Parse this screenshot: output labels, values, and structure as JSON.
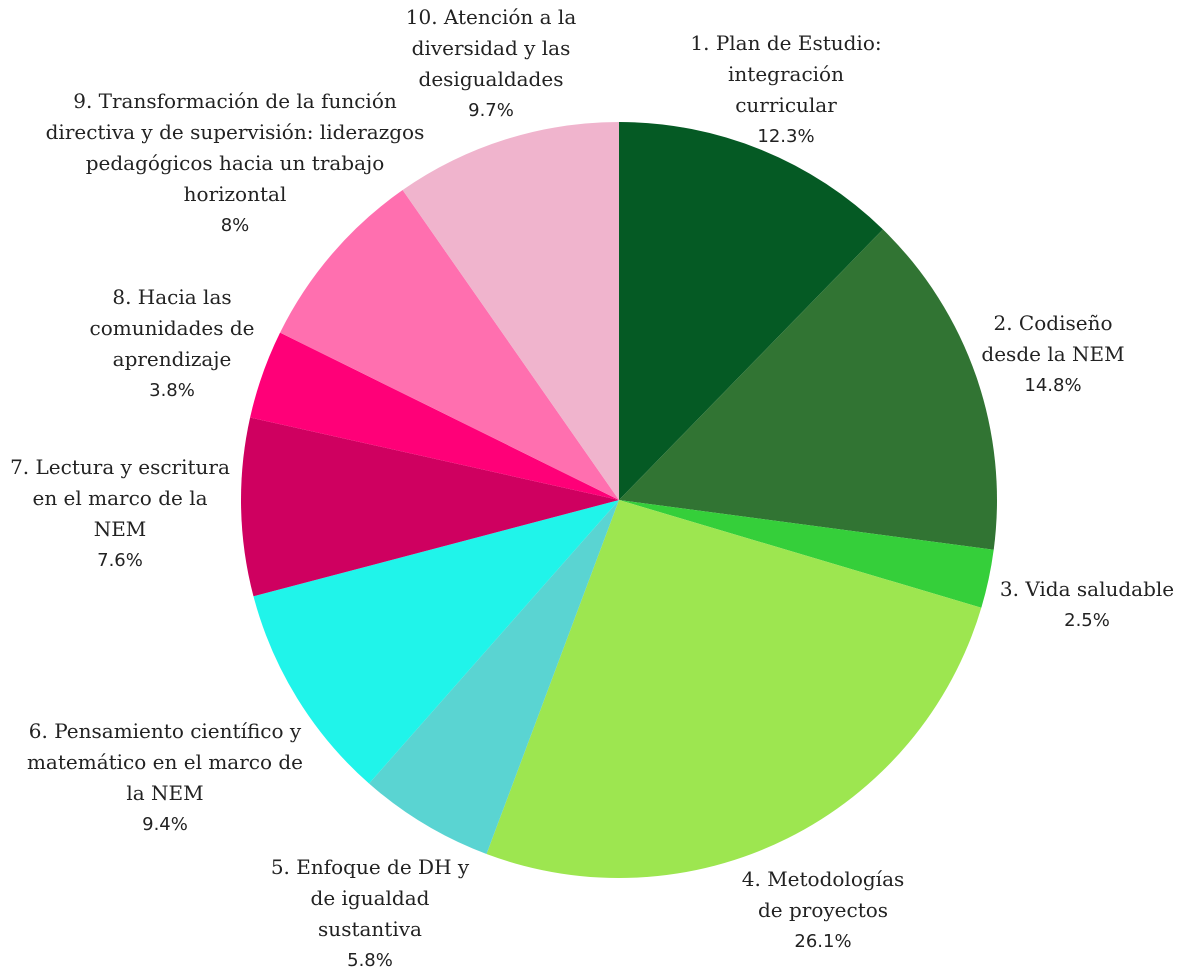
{
  "chart_data": {
    "type": "pie",
    "categories": [
      "1. Plan de Estudio: integración curricular",
      "2. Codiseño desde la NEM",
      "3. Vida saludable",
      "4. Metodologías de proyectos",
      "5. Enfoque de DH y de igualdad sustantiva",
      "6. Pensamiento científico y matemático en el marco de la NEM",
      "7. Lectura y escritura en el marco de la NEM",
      "8. Hacia las comunidades de aprendizaje",
      "9. Transformación de la función directiva y de supervisión: liderazgos pedagógicos hacia un trabajo horizontal",
      "10. Atención a la diversidad y las desigualdades"
    ],
    "values": [
      12.3,
      14.8,
      2.5,
      26.1,
      5.8,
      9.4,
      7.6,
      3.8,
      8,
      9.7
    ],
    "value_labels": [
      "12.3%",
      "14.8%",
      "2.5%",
      "26.1%",
      "5.8%",
      "9.4%",
      "7.6%",
      "3.8%",
      "8%",
      "9.7%"
    ],
    "colors": [
      "#055a24",
      "#317433",
      "#35cf3a",
      "#9de650",
      "#5ad4d2",
      "#20f4ea",
      "#cf0060",
      "#ff0078",
      "#ff6faf",
      "#f0b4cd"
    ]
  }
}
